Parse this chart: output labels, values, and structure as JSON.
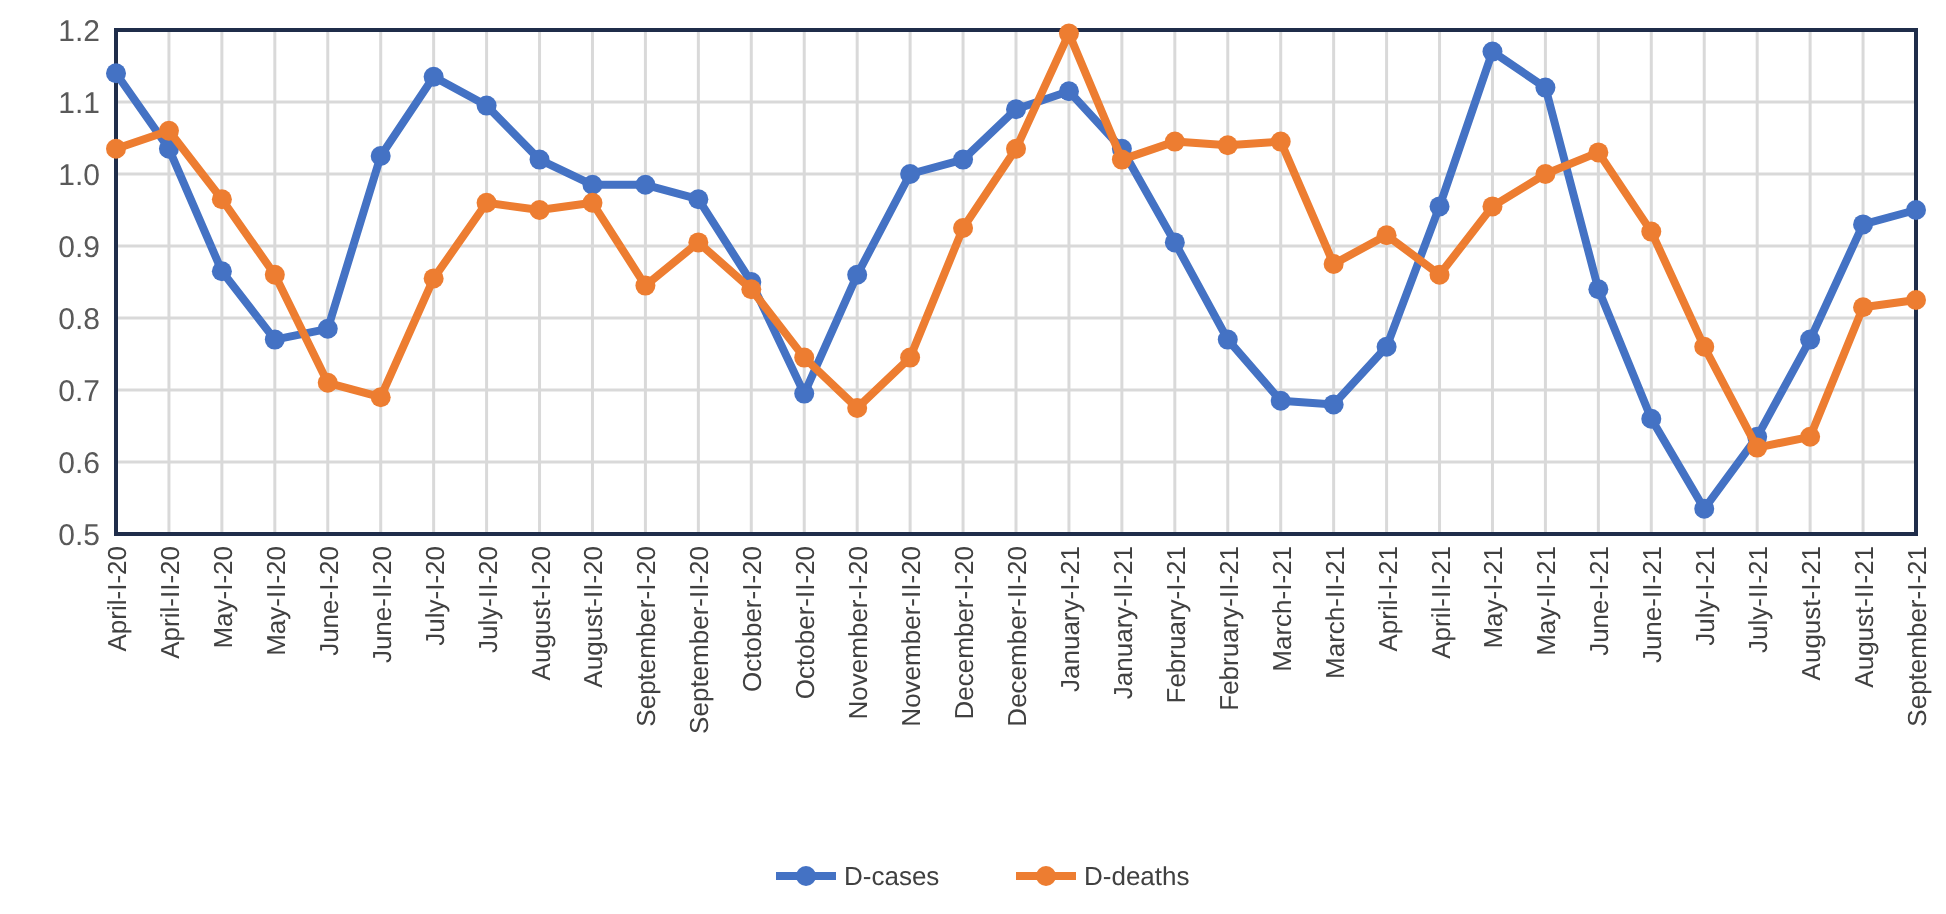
{
  "chart_data": {
    "type": "line",
    "categories": [
      "April-I-20",
      "April-II-20",
      "May-I-20",
      "May-II-20",
      "June-I-20",
      "June-II-20",
      "July-I-20",
      "July-II-20",
      "August-I-20",
      "August-II-20",
      "September-I-20",
      "September-II-20",
      "October-I-20",
      "October-II-20",
      "November-I-20",
      "November-II-20",
      "December-I-20",
      "December-II-20",
      "January-I-21",
      "January-II-21",
      "February-I-21",
      "February-II-21",
      "March-I-21",
      "March-II-21",
      "April-I-21",
      "April-II-21",
      "May-I-21",
      "May-II-21",
      "June-I-21",
      "June-II-21",
      "July-I-21",
      "July-II-21",
      "August-I-21",
      "August-II-21",
      "September-I-21"
    ],
    "series": [
      {
        "name": "D-cases",
        "color": "#4472c4",
        "values": [
          1.14,
          1.035,
          0.865,
          0.77,
          0.785,
          1.025,
          1.135,
          1.095,
          1.02,
          0.985,
          0.985,
          0.965,
          0.85,
          0.695,
          0.86,
          1.0,
          1.02,
          1.09,
          1.115,
          1.035,
          0.905,
          0.77,
          0.685,
          0.68,
          0.76,
          0.955,
          1.17,
          1.12,
          0.84,
          0.66,
          0.535,
          0.635,
          0.77,
          0.93,
          0.95
        ]
      },
      {
        "name": "D-deaths",
        "color": "#ed7d31",
        "values": [
          1.035,
          1.06,
          0.965,
          0.86,
          0.71,
          0.69,
          0.855,
          0.96,
          0.95,
          0.96,
          0.845,
          0.905,
          0.84,
          0.745,
          0.675,
          0.745,
          0.925,
          1.035,
          1.195,
          1.02,
          1.045,
          1.04,
          1.045,
          0.875,
          0.915,
          0.86,
          0.955,
          1.0,
          1.03,
          0.92,
          0.76,
          0.62,
          0.635,
          0.815,
          0.825
        ]
      }
    ],
    "ylim": [
      0.5,
      1.2
    ],
    "yticks": [
      {
        "value": 0.5,
        "label": "0.5"
      },
      {
        "value": 0.6,
        "label": "0.6"
      },
      {
        "value": 0.7,
        "label": "0.7"
      },
      {
        "value": 0.8,
        "label": "0.8"
      },
      {
        "value": 0.9,
        "label": "0.9"
      },
      {
        "value": 1.0,
        "label": "1.0"
      },
      {
        "value": 1.1,
        "label": "1.1"
      },
      {
        "value": 1.2,
        "label": "1.2"
      }
    ],
    "grid": true,
    "legend": "bottom",
    "marker": "circle",
    "line_style": "solid"
  }
}
